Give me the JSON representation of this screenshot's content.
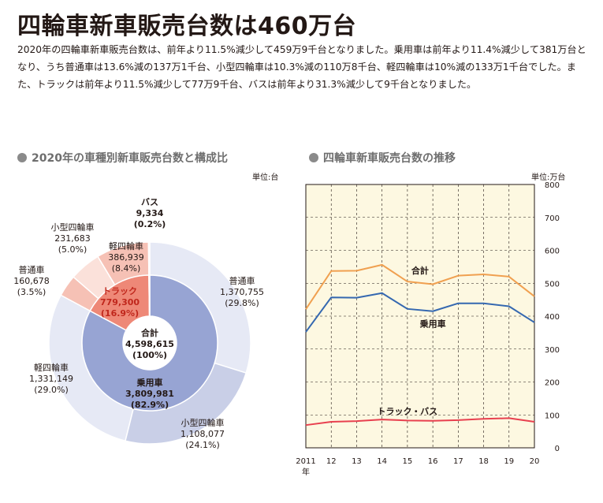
{
  "header": {
    "title": "四輪車新車販売台数は460万台",
    "paragraph": "2020年の四輪車新車販売台数は、前年より11.5%減少して459万9千台となりました。乗用車は前年より11.4%減少して381万台となり、うち普通車は13.6%減の137万1千台、小型四輪車は10.3%減の110万8千台、軽四輪車は10%減の133万1千台でした。また、トラックは前年より11.5%減少して77万9千台、バスは前年より31.3%減少して9千台となりました。"
  },
  "colors": {
    "passenger_inner": "#97a4d3",
    "passenger_outer_light": "#e6e9f5",
    "passenger_outer_mid": "#c9cfe7",
    "truck_inner": "#ee8877",
    "truck_outer_light": "#fbe1da",
    "truck_outer_mid": "#f6c1b5",
    "bus": "#efe2a8",
    "total_line": "#f0a050",
    "passenger_line": "#3568b0",
    "truck_bus_line": "#e8404f",
    "plot_bg": "#fdf8e1"
  },
  "chart_data": [
    {
      "type": "pie",
      "title": "2020年の車種別新車販売台数と構成比",
      "unit": "単位:台",
      "center": {
        "label": "合計",
        "value": "4,598,615",
        "pct": "(100%)"
      },
      "inner": [
        {
          "name": "乗用車",
          "value": 3809981,
          "value_text": "3,809,981",
          "pct": "(82.9%)"
        },
        {
          "name": "トラック",
          "value": 779300,
          "value_text": "779,300",
          "pct": "(16.9%)"
        },
        {
          "name": "バス",
          "value": 9334,
          "value_text": "9,334",
          "pct": "(0.2%)"
        }
      ],
      "outer": [
        {
          "name": "普通車",
          "value": 1370755,
          "value_text": "1,370,755",
          "pct": "(29.8%)",
          "group": "乗用車"
        },
        {
          "name": "小型四輪車",
          "value": 1108077,
          "value_text": "1,108,077",
          "pct": "(24.1%)",
          "group": "乗用車"
        },
        {
          "name": "軽四輪車",
          "value": 1331149,
          "value_text": "1,331,149",
          "pct": "(29.0%)",
          "group": "乗用車"
        },
        {
          "name": "普通車",
          "value": 160678,
          "value_text": "160,678",
          "pct": "(3.5%)",
          "group": "トラック"
        },
        {
          "name": "小型四輪車",
          "value": 231683,
          "value_text": "231,683",
          "pct": "(5.0%)",
          "group": "トラック"
        },
        {
          "name": "軽四輪車",
          "value": 386939,
          "value_text": "386,939",
          "pct": "(8.4%)",
          "group": "トラック"
        },
        {
          "name": "バス",
          "value": 9334,
          "value_text": "",
          "pct": "",
          "group": "バス"
        }
      ]
    },
    {
      "type": "line",
      "title": "四輪車新車販売台数の推移",
      "unit": "単位:万台",
      "x": [
        2011,
        2012,
        2013,
        2014,
        2015,
        2016,
        2017,
        2018,
        2019,
        2020
      ],
      "x_tick_labels": [
        "2011",
        "12",
        "13",
        "14",
        "15",
        "16",
        "17",
        "18",
        "19",
        "20"
      ],
      "x_year_label": "年",
      "ylim": [
        0,
        800
      ],
      "y_ticks": [
        0,
        100,
        200,
        300,
        400,
        500,
        600,
        700,
        800
      ],
      "grid": true,
      "series": [
        {
          "name": "合計",
          "values": [
            421,
            537,
            538,
            556,
            505,
            497,
            523,
            527,
            520,
            460
          ]
        },
        {
          "name": "乗用車",
          "values": [
            352,
            457,
            456,
            470,
            422,
            415,
            439,
            439,
            430,
            381
          ]
        },
        {
          "name": "トラック・バス",
          "values": [
            69,
            79,
            81,
            86,
            83,
            82,
            84,
            88,
            90,
            79
          ]
        }
      ]
    }
  ]
}
